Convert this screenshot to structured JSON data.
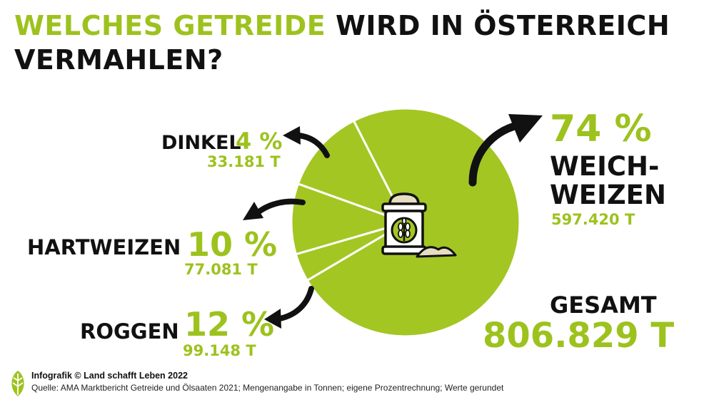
{
  "title": {
    "part1": "WELCHES GETREIDE",
    "part2": "WIRD IN ÖSTERREICH",
    "part3": "VERMAHLEN?"
  },
  "chart_data": {
    "type": "pie",
    "title": "WELCHES GETREIDE WIRD IN ÖSTERREICH VERMAHLEN?",
    "unit": "T",
    "slices": [
      {
        "name": "WEICH- WEIZEN",
        "label_line1": "WEICH-",
        "label_line2": "WEIZEN",
        "percent_label": "74 %",
        "percent": 74,
        "value_label": "597.420 T",
        "value": 597420,
        "color": "#a3c623"
      },
      {
        "name": "DINKEL",
        "label_line1": "DINKEL",
        "percent_label": "4 %",
        "percent": 4,
        "value_label": "33.181 T",
        "value": 33181,
        "color": "#a3c623"
      },
      {
        "name": "HARTWEIZEN",
        "label_line1": "HARTWEIZEN",
        "percent_label": "10 %",
        "percent": 10,
        "value_label": "77.081 T",
        "value": 77081,
        "color": "#a3c623"
      },
      {
        "name": "ROGGEN",
        "label_line1": "ROGGEN",
        "percent_label": "12 %",
        "percent": 12,
        "value_label": "99.148 T",
        "value": 99148,
        "color": "#a3c623"
      }
    ],
    "total": {
      "label": "GESAMT",
      "value_label": "806.829 T",
      "value": 806829
    }
  },
  "center_icon": "flour-sack-icon",
  "footer": {
    "credit": "Infografik © Land schafft Leben 2022",
    "source": "Quelle: AMA Marktbericht Getreide und Ölsaaten 2021; Mengenangabe in Tonnen; eigene Prozentrechnung; Werte gerundet",
    "logo_icon": "leaf-logo-icon"
  },
  "colors": {
    "accent": "#9dc21e",
    "text": "#111111",
    "pie": "#a3c623"
  }
}
